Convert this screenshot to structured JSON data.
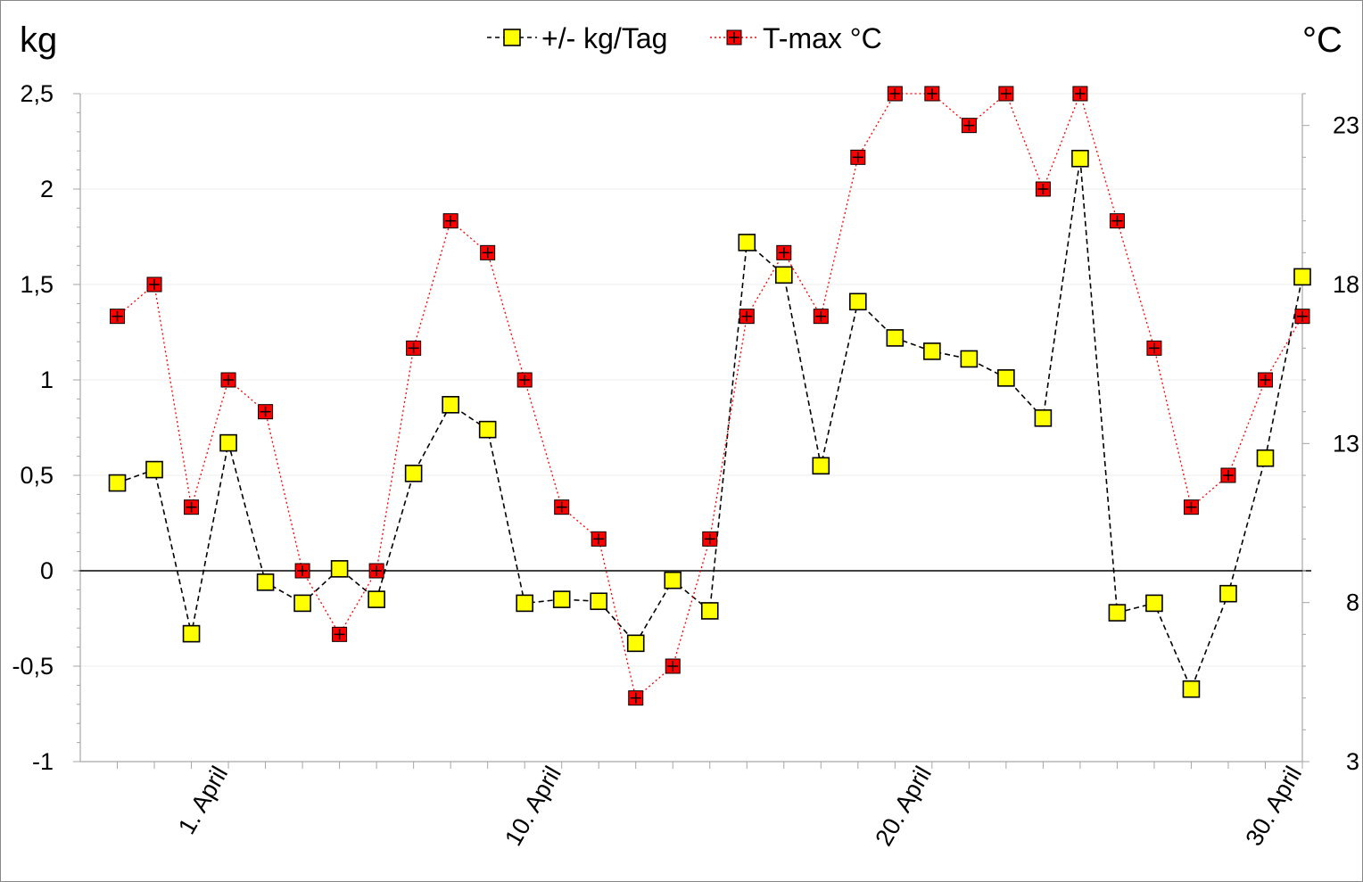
{
  "chart_data": {
    "type": "line",
    "left_unit": "kg",
    "right_unit": "°C",
    "y_left": {
      "range": [
        -1,
        2.5
      ],
      "ticks": [
        "-1",
        "-0,5",
        "0",
        "0,5",
        "1",
        "1,5",
        "2",
        "2,5"
      ],
      "tick_values": [
        -1,
        -0.5,
        0,
        0.5,
        1,
        1.5,
        2,
        2.5
      ]
    },
    "y_right": {
      "range": [
        3,
        24
      ],
      "ticks": [
        "3",
        "8",
        "13",
        "18",
        "23"
      ],
      "tick_values": [
        3,
        8,
        13,
        18,
        23
      ]
    },
    "x_labels": [
      {
        "day": 1,
        "label": "1. April"
      },
      {
        "day": 10,
        "label": "10. April"
      },
      {
        "day": 20,
        "label": "20. April"
      },
      {
        "day": 30,
        "label": "30. April"
      }
    ],
    "x_range": [
      -3,
      30
    ],
    "legend": {
      "placement": "top-center"
    },
    "series": [
      {
        "name": "+/- kg/Tag",
        "axis": "left",
        "color": "#000000",
        "marker_fill": "#ffff00",
        "x": [
          -2,
          -1,
          0,
          1,
          2,
          3,
          4,
          5,
          6,
          7,
          8,
          9,
          10,
          11,
          12,
          13,
          14,
          15,
          16,
          17,
          18,
          19,
          20,
          21,
          22,
          23,
          24,
          25,
          26,
          27,
          28,
          29,
          30
        ],
        "values": [
          0.46,
          0.53,
          -0.33,
          0.67,
          -0.06,
          -0.17,
          0.01,
          -0.15,
          0.51,
          0.87,
          0.74,
          -0.17,
          -0.15,
          -0.16,
          -0.38,
          -0.05,
          -0.21,
          1.72,
          1.55,
          0.55,
          1.41,
          1.22,
          1.15,
          1.11,
          1.01,
          0.8,
          2.16,
          -0.22,
          -0.17,
          -0.62,
          -0.12,
          0.59,
          1.54
        ]
      },
      {
        "name": "T-max °C",
        "axis": "right",
        "color": "#ff0000",
        "marker_fill": "#ff0000",
        "x": [
          -2,
          -1,
          0,
          1,
          2,
          3,
          4,
          5,
          6,
          7,
          8,
          9,
          10,
          11,
          12,
          13,
          14,
          15,
          16,
          17,
          18,
          19,
          20,
          21,
          22,
          23,
          24,
          25,
          26,
          27,
          28,
          29,
          30
        ],
        "values": [
          17,
          18,
          11,
          15,
          14,
          9,
          7,
          9,
          16,
          20,
          19,
          15,
          11,
          10,
          5,
          6,
          10,
          17,
          19,
          17,
          22,
          24,
          24,
          23,
          24,
          21,
          24,
          20,
          16,
          11,
          12,
          15,
          17
        ]
      }
    ]
  }
}
